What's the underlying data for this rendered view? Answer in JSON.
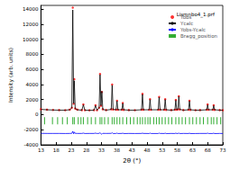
{
  "chart_data": {
    "type": "line",
    "title": "Lismnbo4_1.prf",
    "x_label": "2θ (°)",
    "y_label": "Intensity (arb. units)",
    "x": [
      13,
      15,
      17,
      19,
      21,
      22.5,
      23.2,
      23.5,
      23.8,
      24.0,
      24.3,
      25,
      26.5,
      27,
      27.5,
      29,
      30.5,
      31,
      31.5,
      32.2,
      32.5,
      32.8,
      33.1,
      33.4,
      34.5,
      36.2,
      36.5,
      36.8,
      37.8,
      38.1,
      38.4,
      39.7,
      40,
      40.3,
      42,
      44,
      46.2,
      46.5,
      46.8,
      48.7,
      49,
      49.3,
      51.7,
      52,
      52.3,
      53.7,
      54,
      54.3,
      56,
      57.2,
      57.5,
      57.8,
      58.2,
      58.5,
      58.8,
      60,
      61.7,
      62,
      62.3,
      64,
      65.5,
      67.7,
      68,
      68.3,
      69.7,
      70,
      70.3,
      72,
      73
    ],
    "series": [
      {
        "name": "Yobs",
        "color": "#ff0000",
        "type": "scatter",
        "marker": "circle",
        "values": [
          720,
          660,
          630,
          610,
          600,
          660,
          920,
          14200,
          1450,
          4700,
          820,
          660,
          610,
          1350,
          600,
          590,
          610,
          1250,
          600,
          920,
          5400,
          1180,
          3000,
          720,
          610,
          720,
          4000,
          690,
          660,
          1850,
          650,
          660,
          1550,
          640,
          610,
          600,
          660,
          2750,
          660,
          650,
          2050,
          650,
          650,
          2350,
          660,
          650,
          2050,
          640,
          610,
          650,
          1950,
          650,
          710,
          2450,
          690,
          610,
          650,
          1850,
          640,
          600,
          610,
          660,
          1350,
          650,
          650,
          1250,
          640,
          610,
          600
        ]
      },
      {
        "name": "Ycalc",
        "color": "#000000",
        "type": "line",
        "line_style": "solid",
        "values": [
          700,
          650,
          620,
          600,
          600,
          650,
          900,
          13900,
          1500,
          4500,
          800,
          650,
          600,
          1300,
          600,
          580,
          600,
          1200,
          600,
          900,
          5300,
          1200,
          3100,
          700,
          600,
          700,
          3900,
          700,
          650,
          1800,
          650,
          650,
          1500,
          650,
          600,
          600,
          650,
          2700,
          650,
          650,
          2000,
          650,
          650,
          2300,
          650,
          650,
          2000,
          650,
          600,
          650,
          1900,
          650,
          700,
          2400,
          700,
          600,
          650,
          1800,
          650,
          600,
          600,
          650,
          1300,
          650,
          650,
          1200,
          650,
          600,
          600
        ]
      },
      {
        "name": "Yobs-Ycalc",
        "color": "#0000ff",
        "type": "line",
        "line_style": "solid",
        "values": [
          -2480,
          -2490,
          -2490,
          -2490,
          -2500,
          -2490,
          -2480,
          -2200,
          -2550,
          -2300,
          -2480,
          -2490,
          -2490,
          -2450,
          -2500,
          -2490,
          -2490,
          -2450,
          -2500,
          -2480,
          -2400,
          -2520,
          -2600,
          -2480,
          -2490,
          -2480,
          -2400,
          -2510,
          -2490,
          -2450,
          -2500,
          -2490,
          -2450,
          -2510,
          -2490,
          -2500,
          -2490,
          -2450,
          -2490,
          -2500,
          -2450,
          -2500,
          -2500,
          -2450,
          -2490,
          -2500,
          -2450,
          -2510,
          -2490,
          -2500,
          -2450,
          -2500,
          -2490,
          -2450,
          -2510,
          -2490,
          -2500,
          -2450,
          -2510,
          -2500,
          -2490,
          -2490,
          -2450,
          -2500,
          -2500,
          -2450,
          -2510,
          -2490,
          -2500
        ]
      }
    ],
    "bragg": {
      "name": "Bragg_position",
      "color": "#009900",
      "type": "scatter",
      "marker": "tick",
      "x": [
        14.2,
        16.8,
        18.5,
        20.1,
        21.7,
        23.5,
        24.0,
        25.3,
        26.2,
        27.0,
        28.4,
        29.6,
        31.0,
        32.5,
        33.1,
        34.0,
        35.2,
        36.5,
        37.2,
        38.1,
        39.0,
        40.0,
        41.3,
        42.5,
        43.6,
        44.8,
        45.7,
        46.5,
        47.4,
        48.3,
        49.0,
        50.2,
        51.1,
        52.0,
        53.0,
        54.0,
        55.1,
        56.2,
        57.5,
        58.5,
        59.6,
        60.7,
        62.0,
        63.1,
        64.3,
        65.5,
        66.6,
        68.0,
        69.2,
        70.0,
        71.1,
        72.3
      ],
      "values": [
        -800,
        -800,
        -800,
        -800,
        -800,
        -800,
        -800,
        -800,
        -800,
        -800,
        -800,
        -800,
        -800,
        -800,
        -800,
        -800,
        -800,
        -800,
        -800,
        -800,
        -800,
        -800,
        -800,
        -800,
        -800,
        -800,
        -800,
        -800,
        -800,
        -800,
        -800,
        -800,
        -800,
        -800,
        -800,
        -800,
        -800,
        -800,
        -800,
        -800,
        -800,
        -800,
        -800,
        -800,
        -800,
        -800,
        -800,
        -800,
        -800,
        -800,
        -800,
        -800
      ]
    },
    "xlim": [
      13,
      73
    ],
    "xticks": [
      13,
      18,
      23,
      28,
      33,
      38,
      43,
      48,
      53,
      58,
      63,
      68,
      73
    ],
    "ylim": [
      -4000,
      14500
    ],
    "yticks": [
      -4000,
      -2000,
      0,
      2000,
      4000,
      6000,
      8000,
      10000,
      12000,
      14000
    ],
    "legend": "upper right",
    "grid": false
  }
}
